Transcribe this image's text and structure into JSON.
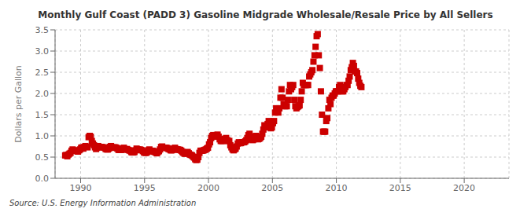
{
  "chart_data": {
    "type": "scatter",
    "title": "Monthly Gulf Coast (PADD 3) Gasoline Midgrade Wholesale/Resale Price by All Sellers",
    "y_label": "Dollars per Gallon",
    "annotations": [
      "Source: U.S. Energy Information Administration"
    ],
    "color": "#cc0000",
    "marker": "square",
    "grid": true,
    "xlim": [
      1988.0,
      2023.5
    ],
    "ylim": [
      0.0,
      3.5
    ],
    "xticks": [
      1990,
      1995,
      2000,
      2005,
      2010,
      2015,
      2020
    ],
    "yticks": [
      {
        "value": 0.0,
        "label": "0.0"
      },
      0.5,
      {
        "value": 1.0,
        "label": "1.0"
      },
      1.5,
      {
        "value": 2.0,
        "label": "2.0"
      },
      2.5,
      {
        "value": 3.0,
        "label": "3.0"
      },
      3.5
    ],
    "x": [
      1988.7916666666667,
      1988.875,
      1988.9583333333333,
      1989.0416666666667,
      1989.125,
      1989.2083333333333,
      1989.2916666666667,
      1989.375,
      1989.4583333333333,
      1989.5416666666667,
      1989.625,
      1989.7083333333333,
      1989.7916666666667,
      1989.875,
      1989.9583333333333,
      1990.0416666666667,
      1990.125,
      1990.2083333333333,
      1990.2916666666667,
      1990.375,
      1990.4583333333333,
      1990.5416666666667,
      1990.625,
      1990.7083333333333,
      1990.7916666666667,
      1990.875,
      1990.9583333333333,
      1991.0416666666667,
      1991.125,
      1991.2083333333333,
      1991.2916666666667,
      1991.375,
      1991.4583333333333,
      1991.5416666666667,
      1991.625,
      1991.7083333333333,
      1991.7916666666667,
      1991.875,
      1991.9583333333333,
      1992.0416666666667,
      1992.125,
      1992.2083333333333,
      1992.2916666666667,
      1992.375,
      1992.4583333333333,
      1992.5416666666667,
      1992.625,
      1992.7083333333333,
      1992.7916666666667,
      1992.875,
      1992.9583333333333,
      1993.0416666666667,
      1993.125,
      1993.2083333333333,
      1993.2916666666667,
      1993.375,
      1993.4583333333333,
      1993.5416666666667,
      1993.625,
      1993.7083333333333,
      1993.7916666666667,
      1993.875,
      1993.9583333333333,
      1994.0416666666667,
      1994.125,
      1994.2083333333333,
      1994.2916666666667,
      1994.375,
      1994.4583333333333,
      1994.5416666666667,
      1994.625,
      1994.7083333333333,
      1994.7916666666667,
      1994.875,
      1994.9583333333333,
      1995.0416666666667,
      1995.125,
      1995.2083333333333,
      1995.2916666666667,
      1995.375,
      1995.4583333333333,
      1995.5416666666667,
      1995.625,
      1995.7083333333333,
      1995.7916666666667,
      1995.875,
      1995.9583333333333,
      1996.0416666666667,
      1996.125,
      1996.2083333333333,
      1996.2916666666667,
      1996.375,
      1996.4583333333333,
      1996.5416666666667,
      1996.625,
      1996.7083333333333,
      1996.7916666666667,
      1996.875,
      1996.9583333333333,
      1997.0416666666667,
      1997.125,
      1997.2083333333333,
      1997.2916666666667,
      1997.375,
      1997.4583333333333,
      1997.5416666666667,
      1997.625,
      1997.7083333333333,
      1997.7916666666667,
      1997.875,
      1997.9583333333333,
      1998.0416666666667,
      1998.125,
      1998.2083333333333,
      1998.2916666666667,
      1998.375,
      1998.4583333333333,
      1998.5416666666667,
      1998.625,
      1998.7083333333333,
      1998.7916666666667,
      1998.875,
      1998.9583333333333,
      1999.0416666666667,
      1999.125,
      1999.2083333333333,
      1999.2916666666667,
      1999.375,
      1999.4583333333333,
      1999.5416666666667,
      1999.625,
      1999.7083333333333,
      1999.7916666666667,
      1999.875,
      1999.9583333333333,
      2000.0416666666667,
      2000.125,
      2000.2083333333333,
      2000.2916666666667,
      2000.375,
      2000.4583333333333,
      2000.5416666666667,
      2000.625,
      2000.7083333333333,
      2000.7916666666667,
      2000.875,
      2000.9583333333333,
      2001.0416666666667,
      2001.125,
      2001.2083333333333,
      2001.2916666666667,
      2001.375,
      2001.4583333333333,
      2001.5416666666667,
      2001.625,
      2001.7083333333333,
      2001.7916666666667,
      2001.875,
      2001.9583333333333,
      2002.0416666666667,
      2002.125,
      2002.2083333333333,
      2002.2916666666667,
      2002.375,
      2002.4583333333333,
      2002.5416666666667,
      2002.625,
      2002.7083333333333,
      2002.7916666666667,
      2002.875,
      2002.9583333333333,
      2003.0416666666667,
      2003.125,
      2003.2083333333333,
      2003.2916666666667,
      2003.375,
      2003.4583333333333,
      2003.5416666666667,
      2003.625,
      2003.7083333333333,
      2003.7916666666667,
      2003.875,
      2003.9583333333333,
      2004.0416666666667,
      2004.125,
      2004.2083333333333,
      2004.2916666666667,
      2004.375,
      2004.4583333333333,
      2004.5416666666667,
      2004.625,
      2004.7083333333333,
      2004.7916666666667,
      2004.875,
      2004.9583333333333,
      2005.0416666666667,
      2005.125,
      2005.2083333333333,
      2005.2916666666667,
      2005.375,
      2005.4583333333333,
      2005.5416666666667,
      2005.625,
      2005.7083333333333,
      2005.7916666666667,
      2005.875,
      2005.9583333333333,
      2006.0416666666667,
      2006.125,
      2006.2083333333333,
      2006.2916666666667,
      2006.375,
      2006.4583333333333,
      2006.5416666666667,
      2006.625,
      2006.7083333333333,
      2006.7916666666667,
      2006.875,
      2006.9583333333333,
      2007.0416666666667,
      2007.125,
      2007.2083333333333,
      2007.2916666666667,
      2007.375,
      2007.4583333333333,
      2007.5416666666667,
      2007.625,
      2007.7083333333333,
      2007.7916666666667,
      2007.875,
      2007.9583333333333,
      2008.0416666666667,
      2008.125,
      2008.2083333333333,
      2008.2916666666667,
      2008.375,
      2008.4583333333333,
      2008.5416666666667,
      2008.625,
      2008.7083333333333,
      2008.7916666666667,
      2008.875,
      2008.9583333333333,
      2009.0416666666667,
      2009.125,
      2009.2083333333333,
      2009.2916666666667,
      2009.375,
      2009.4583333333333,
      2009.5416666666667,
      2009.625,
      2009.7083333333333,
      2009.7916666666667,
      2009.875,
      2009.9583333333333,
      2010.0416666666667,
      2010.125,
      2010.2083333333333,
      2010.2916666666667,
      2010.375,
      2010.4583333333333,
      2010.5416666666667,
      2010.625,
      2010.7083333333333,
      2010.7916666666667,
      2010.875,
      2010.9583333333333,
      2011.0416666666667,
      2011.125,
      2011.2083333333333,
      2011.2916666666667,
      2011.375,
      2011.4583333333333,
      2011.5416666666667,
      2011.625,
      2011.7083333333333,
      2011.7916666666667,
      2011.875,
      2011.9583333333333
    ],
    "values": [
      0.54,
      0.55,
      0.52,
      0.56,
      0.58,
      0.6,
      0.65,
      0.68,
      0.66,
      0.65,
      0.65,
      0.64,
      0.63,
      0.66,
      0.68,
      0.72,
      0.73,
      0.7,
      0.74,
      0.76,
      0.74,
      0.73,
      0.97,
      1.0,
      0.98,
      0.88,
      0.82,
      0.78,
      0.73,
      0.69,
      0.72,
      0.76,
      0.74,
      0.74,
      0.74,
      0.73,
      0.73,
      0.72,
      0.69,
      0.68,
      0.68,
      0.7,
      0.74,
      0.76,
      0.73,
      0.72,
      0.73,
      0.73,
      0.72,
      0.7,
      0.67,
      0.67,
      0.67,
      0.67,
      0.7,
      0.72,
      0.69,
      0.68,
      0.69,
      0.67,
      0.66,
      0.65,
      0.62,
      0.61,
      0.61,
      0.62,
      0.66,
      0.7,
      0.68,
      0.67,
      0.68,
      0.67,
      0.66,
      0.64,
      0.61,
      0.6,
      0.6,
      0.62,
      0.66,
      0.68,
      0.65,
      0.64,
      0.65,
      0.63,
      0.62,
      0.61,
      0.59,
      0.62,
      0.64,
      0.68,
      0.74,
      0.75,
      0.72,
      0.72,
      0.72,
      0.72,
      0.71,
      0.69,
      0.68,
      0.66,
      0.66,
      0.67,
      0.7,
      0.72,
      0.69,
      0.68,
      0.68,
      0.67,
      0.67,
      0.65,
      0.62,
      0.6,
      0.58,
      0.58,
      0.6,
      0.62,
      0.59,
      0.56,
      0.55,
      0.54,
      0.51,
      0.49,
      0.45,
      0.43,
      0.44,
      0.5,
      0.6,
      0.65,
      0.65,
      0.65,
      0.66,
      0.67,
      0.68,
      0.7,
      0.72,
      0.8,
      0.85,
      0.95,
      1.0,
      1.02,
      1.0,
      0.98,
      1.02,
      1.03,
      0.98,
      0.92,
      0.88,
      0.88,
      0.88,
      0.9,
      0.93,
      0.95,
      0.9,
      0.88,
      0.88,
      0.78,
      0.73,
      0.68,
      0.66,
      0.68,
      0.7,
      0.75,
      0.82,
      0.85,
      0.83,
      0.83,
      0.85,
      0.85,
      0.85,
      0.87,
      0.9,
      0.95,
      1.02,
      1.05,
      0.92,
      0.92,
      0.9,
      0.92,
      0.98,
      1.0,
      0.95,
      0.92,
      0.93,
      0.95,
      0.98,
      1.05,
      1.15,
      1.25,
      1.22,
      1.2,
      1.28,
      1.35,
      1.25,
      1.18,
      1.2,
      1.3,
      1.35,
      1.55,
      1.65,
      1.6,
      1.55,
      1.65,
      1.9,
      2.1,
      1.9,
      1.75,
      1.7,
      1.7,
      1.7,
      1.85,
      2.05,
      2.2,
      2.1,
      2.15,
      2.2,
      1.85,
      1.7,
      1.65,
      1.68,
      1.7,
      1.72,
      1.85,
      2.05,
      2.25,
      2.2,
      2.2,
      2.2,
      2.2,
      2.2,
      2.4,
      2.45,
      2.5,
      2.55,
      2.75,
      2.9,
      3.1,
      3.35,
      3.4,
      2.9,
      2.6,
      2.05,
      1.5,
      1.1,
      1.1,
      1.1,
      1.35,
      1.42,
      1.65,
      1.85,
      1.75,
      1.9,
      1.95,
      1.95,
      2.0,
      2.05,
      2.05,
      2.05,
      2.15,
      2.2,
      2.1,
      2.05,
      2.05,
      2.1,
      2.15,
      2.2,
      2.2,
      2.3,
      2.4,
      2.55,
      2.62,
      2.72,
      2.65,
      2.52,
      2.52,
      2.48,
      2.35,
      2.25,
      2.18,
      2.15
    ]
  }
}
